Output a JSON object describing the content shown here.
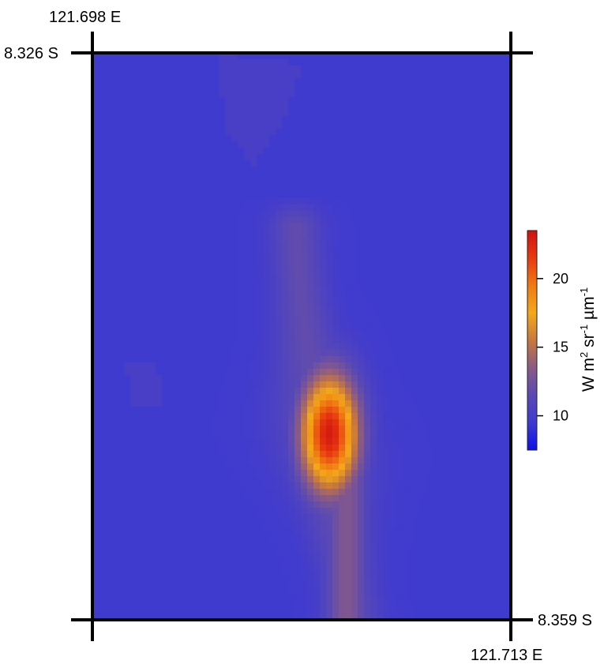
{
  "chart_data": {
    "type": "heatmap",
    "title": "",
    "xlabel": "",
    "ylabel": "",
    "corner_labels": {
      "top_left_lon": "121.698 E",
      "top_left_lat": "8.326 S",
      "bottom_right_lat": "8.359 S",
      "bottom_right_lon": "121.713 E"
    },
    "x_range": [
      121.698,
      121.713
    ],
    "y_range": [
      -8.359,
      -8.326
    ],
    "colorbar": {
      "label": "W m2 sr-1 µm-1",
      "ticks": [
        10,
        15,
        20
      ],
      "tick_labels": [
        "10",
        "15",
        "20"
      ],
      "range": [
        7.5,
        23.5
      ],
      "colors": [
        "#1010e8",
        "#3f3ad0",
        "#5a49b4",
        "#8a5a86",
        "#c8783c",
        "#f4a81a",
        "#f07a12",
        "#e83a10",
        "#d01010"
      ]
    },
    "field": {
      "background": 9.6,
      "description_values_note": "",
      "low_regions": 8.0,
      "plume_outer": 12.0,
      "plume_mid": 16.0,
      "peak": 23.0,
      "peak_location": [
        121.7069,
        -8.3505
      ]
    }
  }
}
